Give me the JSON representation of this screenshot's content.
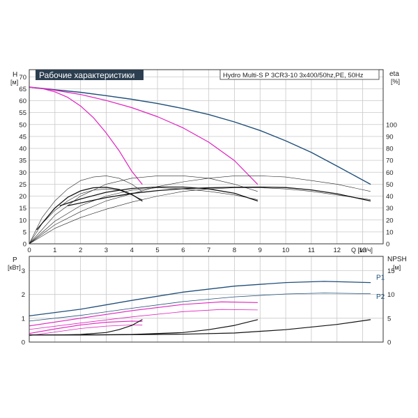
{
  "chart_data": [
    {
      "type": "line",
      "title": "Рабочие характеристики",
      "subtitle": "Hydro Multi-S P 3CR3-10 3x400/50hz,PE, 50Hz",
      "xlabel": "Q [м³/ч]",
      "ylabel": "H",
      "ylabel_unit": "[м]",
      "y2label": "eta",
      "y2label_unit": "[%]",
      "xlim": [
        0,
        13.8
      ],
      "ylim": [
        0,
        73
      ],
      "y2lim": [
        0,
        146
      ],
      "xticks": [
        0,
        1,
        2,
        3,
        4,
        5,
        6,
        7,
        8,
        9,
        10,
        11,
        12,
        13
      ],
      "yticks": [
        0,
        5,
        10,
        15,
        20,
        25,
        30,
        35,
        40,
        45,
        50,
        55,
        60,
        65,
        70
      ],
      "y2ticks": [
        0,
        10,
        20,
        30,
        40,
        50,
        60,
        70,
        80,
        90,
        100
      ],
      "grid": true,
      "series": [
        {
          "axis": "H",
          "color": "#1f4e79",
          "width": 1.4,
          "x": [
            0,
            1,
            2,
            3,
            4,
            5,
            6,
            7,
            8,
            9,
            10,
            11,
            12,
            13.3
          ],
          "y": [
            65.7,
            64.6,
            63.5,
            62.1,
            60.6,
            58.8,
            56.7,
            54.2,
            51.1,
            47.5,
            43.2,
            38.3,
            32.6,
            25
          ]
        },
        {
          "axis": "H",
          "color": "#e020c0",
          "width": 1.2,
          "x": [
            0,
            1,
            2,
            3,
            4,
            5,
            6,
            7,
            8,
            8.9
          ],
          "y": [
            65.7,
            64.4,
            62.6,
            60.1,
            57.1,
            53.3,
            48.6,
            42.6,
            34.9,
            25
          ]
        },
        {
          "axis": "H",
          "color": "#e020c0",
          "width": 1.2,
          "x": [
            0,
            0.5,
            1,
            1.5,
            2,
            2.5,
            3,
            3.5,
            4,
            4.4
          ],
          "y": [
            65.7,
            65.1,
            63.7,
            61.4,
            57.8,
            52.9,
            46.5,
            39.1,
            30.4,
            25
          ]
        },
        {
          "axis": "eta",
          "color": "#222222",
          "width": 0.6,
          "x": [
            0,
            1,
            2,
            3,
            4,
            5,
            6,
            7,
            8,
            9,
            10,
            11,
            12,
            13.3
          ],
          "y": [
            0,
            16,
            27,
            36,
            42,
            48,
            52,
            55,
            57,
            57,
            56,
            53,
            50,
            44
          ]
        },
        {
          "axis": "eta",
          "color": "#222222",
          "width": 0.6,
          "x": [
            0,
            1,
            2,
            3,
            4,
            5,
            6,
            7,
            8,
            8.9
          ],
          "y": [
            0,
            24,
            40,
            50,
            55,
            57,
            57,
            55,
            50,
            44
          ]
        },
        {
          "axis": "eta",
          "color": "#222222",
          "width": 0.6,
          "x": [
            0,
            0.5,
            1,
            1.5,
            2,
            2.5,
            3,
            3.5,
            4,
            4.4
          ],
          "y": [
            0,
            22,
            36,
            46,
            53,
            56,
            57,
            55,
            50,
            44
          ]
        },
        {
          "axis": "eta",
          "color": "#222222",
          "width": 0.6,
          "x": [
            0,
            1,
            2,
            3,
            4,
            5,
            6,
            7,
            8,
            9,
            10,
            11,
            12,
            13.3
          ],
          "y": [
            0,
            13,
            22,
            29,
            35,
            40,
            44,
            46,
            47,
            47,
            46,
            44,
            41,
            37
          ]
        },
        {
          "axis": "eta",
          "color": "#222222",
          "width": 0.6,
          "x": [
            0,
            1,
            2,
            3,
            4,
            5,
            6,
            7,
            8,
            8.9
          ],
          "y": [
            0,
            19,
            32,
            40,
            45,
            47,
            46,
            44,
            41,
            37
          ]
        },
        {
          "axis": "eta",
          "color": "#222222",
          "width": 0.6,
          "x": [
            0,
            0.5,
            1,
            1.5,
            2,
            2.5,
            3,
            3.5,
            4,
            4.4
          ],
          "y": [
            0,
            17,
            28,
            36,
            42,
            45,
            46,
            45,
            41,
            37
          ]
        },
        {
          "axis": "H",
          "color": "#111111",
          "width": 1.3,
          "x": [
            1.5,
            3,
            4,
            5,
            6,
            7,
            8,
            9,
            10,
            11,
            12,
            13.3
          ],
          "y": [
            16,
            19.4,
            21.1,
            22.3,
            23.1,
            23.5,
            23.7,
            23.8,
            23.6,
            22.6,
            21,
            18
          ]
        },
        {
          "axis": "H",
          "color": "#111111",
          "width": 1.3,
          "x": [
            1.2,
            2,
            3,
            4,
            5,
            6,
            7,
            8,
            8.9
          ],
          "y": [
            16,
            18.8,
            21.6,
            23.2,
            23.8,
            23.8,
            23,
            21.2,
            18
          ]
        },
        {
          "axis": "H",
          "color": "#111111",
          "width": 1.3,
          "x": [
            0.3,
            1,
            1.5,
            2,
            2.5,
            3,
            3.5,
            4,
            4.4
          ],
          "y": [
            6,
            15,
            19.5,
            22.2,
            23.5,
            23.7,
            22.8,
            20.7,
            18
          ]
        }
      ]
    },
    {
      "type": "line",
      "xlim": [
        0,
        13.8
      ],
      "ylabel": "P",
      "ylabel_unit": "[кВт]",
      "y2label": "NPSH",
      "y2label_unit": "[м]",
      "ylim": [
        0,
        3.6
      ],
      "y2lim": [
        0,
        18
      ],
      "yticks": [
        0,
        1,
        2,
        3
      ],
      "y2ticks": [
        0,
        5,
        10,
        15
      ],
      "grid": true,
      "labels": [
        {
          "text": "P1",
          "x": 14.2,
          "y": 2.62,
          "color": "#1f4e79"
        },
        {
          "text": "P2",
          "x": 14.2,
          "y": 1.82,
          "color": "#1f4e79"
        }
      ],
      "series": [
        {
          "axis": "P",
          "color": "#1f4e79",
          "width": 1.3,
          "x": [
            0,
            2,
            4,
            6,
            8,
            10,
            11.5,
            13.3
          ],
          "y": [
            1.1,
            1.38,
            1.75,
            2.1,
            2.35,
            2.5,
            2.55,
            2.5
          ]
        },
        {
          "axis": "P",
          "color": "#1f4e79",
          "width": 0.8,
          "x": [
            0,
            2,
            4,
            6,
            8,
            10,
            11.5,
            13.3
          ],
          "y": [
            0.88,
            1.12,
            1.42,
            1.7,
            1.9,
            2.02,
            2.06,
            2.03
          ]
        },
        {
          "axis": "P",
          "color": "#e020c0",
          "width": 1.1,
          "x": [
            0,
            2,
            4,
            6,
            7.5,
            8.9
          ],
          "y": [
            0.68,
            1.0,
            1.32,
            1.58,
            1.69,
            1.66
          ]
        },
        {
          "axis": "P",
          "color": "#e020c0",
          "width": 0.8,
          "x": [
            0,
            2,
            4,
            6,
            7.5,
            8.9
          ],
          "y": [
            0.53,
            0.8,
            1.06,
            1.28,
            1.37,
            1.35
          ]
        },
        {
          "axis": "P",
          "color": "#e020c0",
          "width": 1.1,
          "x": [
            0,
            1,
            2,
            3,
            4,
            4.4
          ],
          "y": [
            0.36,
            0.55,
            0.72,
            0.83,
            0.88,
            0.87
          ]
        },
        {
          "axis": "P",
          "color": "#e020c0",
          "width": 0.8,
          "x": [
            0,
            1,
            2,
            3,
            4,
            4.4
          ],
          "y": [
            0.27,
            0.42,
            0.57,
            0.67,
            0.72,
            0.71
          ]
        },
        {
          "axis": "NPSH",
          "color": "#111111",
          "width": 1.2,
          "x": [
            0,
            2,
            4,
            6,
            8,
            10,
            12,
            13.3
          ],
          "y": [
            1.5,
            1.5,
            1.55,
            1.65,
            1.9,
            2.6,
            3.7,
            4.7
          ]
        },
        {
          "axis": "NPSH",
          "color": "#111111",
          "width": 1.2,
          "x": [
            0,
            2,
            4,
            6,
            7,
            8,
            8.9
          ],
          "y": [
            1.5,
            1.5,
            1.6,
            2.0,
            2.6,
            3.5,
            4.7
          ]
        },
        {
          "axis": "NPSH",
          "color": "#111111",
          "width": 1.2,
          "x": [
            0,
            1,
            2,
            3,
            3.5,
            4,
            4.4
          ],
          "y": [
            1.5,
            1.5,
            1.6,
            2.0,
            2.6,
            3.5,
            4.7
          ]
        }
      ]
    }
  ]
}
